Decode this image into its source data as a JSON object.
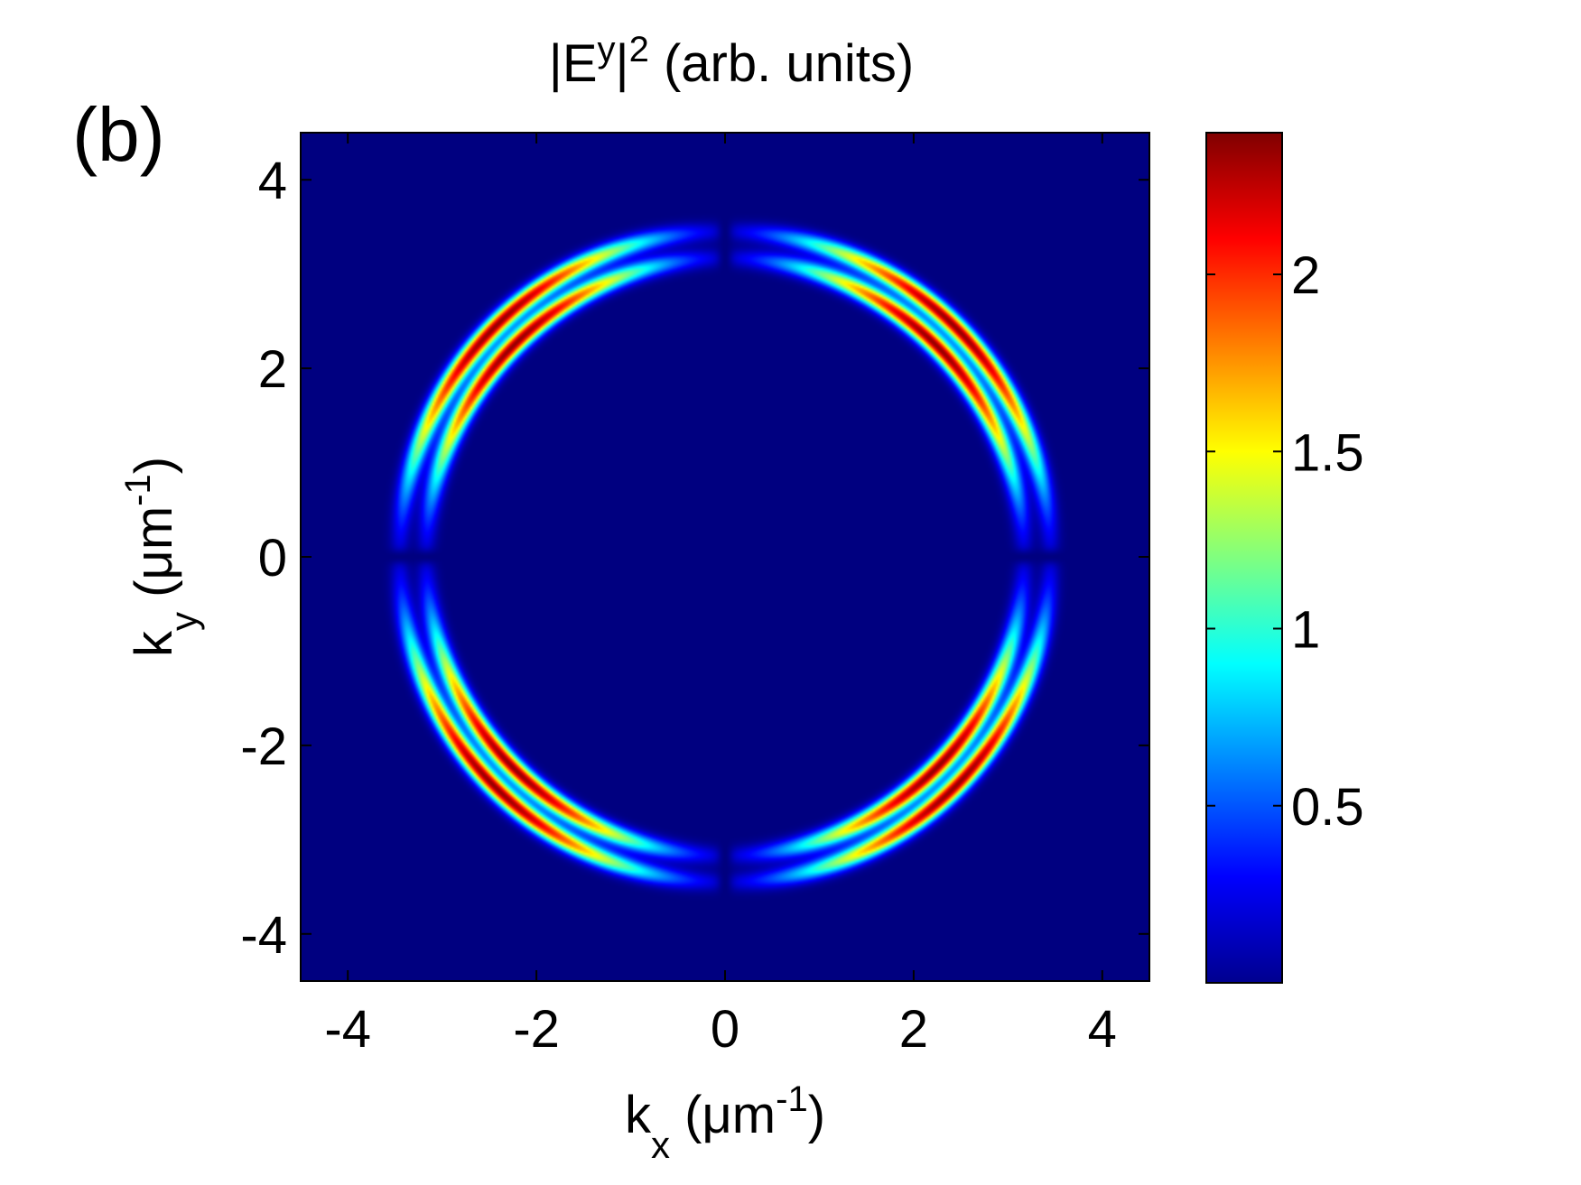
{
  "panel_label": "(b)",
  "chart_data": {
    "type": "heatmap",
    "title": {
      "base": "|E",
      "sup1": "y",
      "mid": "|",
      "sup2": "2",
      "tail": " (arb. units)"
    },
    "xlabel": {
      "base": "k",
      "sub": "x",
      "unit_open": " (μm",
      "sup": "-1",
      "unit_close": ")"
    },
    "ylabel": {
      "base": "k",
      "sub": "y",
      "unit_open": " (μm",
      "sup": "-1",
      "unit_close": ")"
    },
    "xlim": [
      -4.5,
      4.5
    ],
    "ylim": [
      -4.5,
      4.5
    ],
    "xticks": [
      -4,
      -2,
      0,
      2,
      4
    ],
    "xtick_labels": [
      "-4",
      "-2",
      "0",
      "2",
      "4"
    ],
    "yticks": [
      -4,
      -2,
      0,
      2,
      4
    ],
    "ytick_labels": [
      "-4",
      "-2",
      "0",
      "2",
      "4"
    ],
    "colorbar": {
      "range": [
        0,
        2.4
      ],
      "ticks": [
        0.5,
        1,
        1.5,
        2
      ],
      "tick_labels": [
        "0.5",
        "1",
        "1.5",
        "2"
      ],
      "colormap": "jet"
    },
    "background_color": "#00008f",
    "rings": [
      {
        "radius": 3.45,
        "width": 0.1,
        "peak": 2.35
      },
      {
        "radius": 3.17,
        "width": 0.1,
        "peak": 2.35
      }
    ],
    "gap_half_width_near_axes": 0.12,
    "colors": {
      "jet_stops": [
        "#00008f",
        "#0000ff",
        "#00ffff",
        "#ffff00",
        "#ff0000",
        "#800000"
      ]
    }
  }
}
